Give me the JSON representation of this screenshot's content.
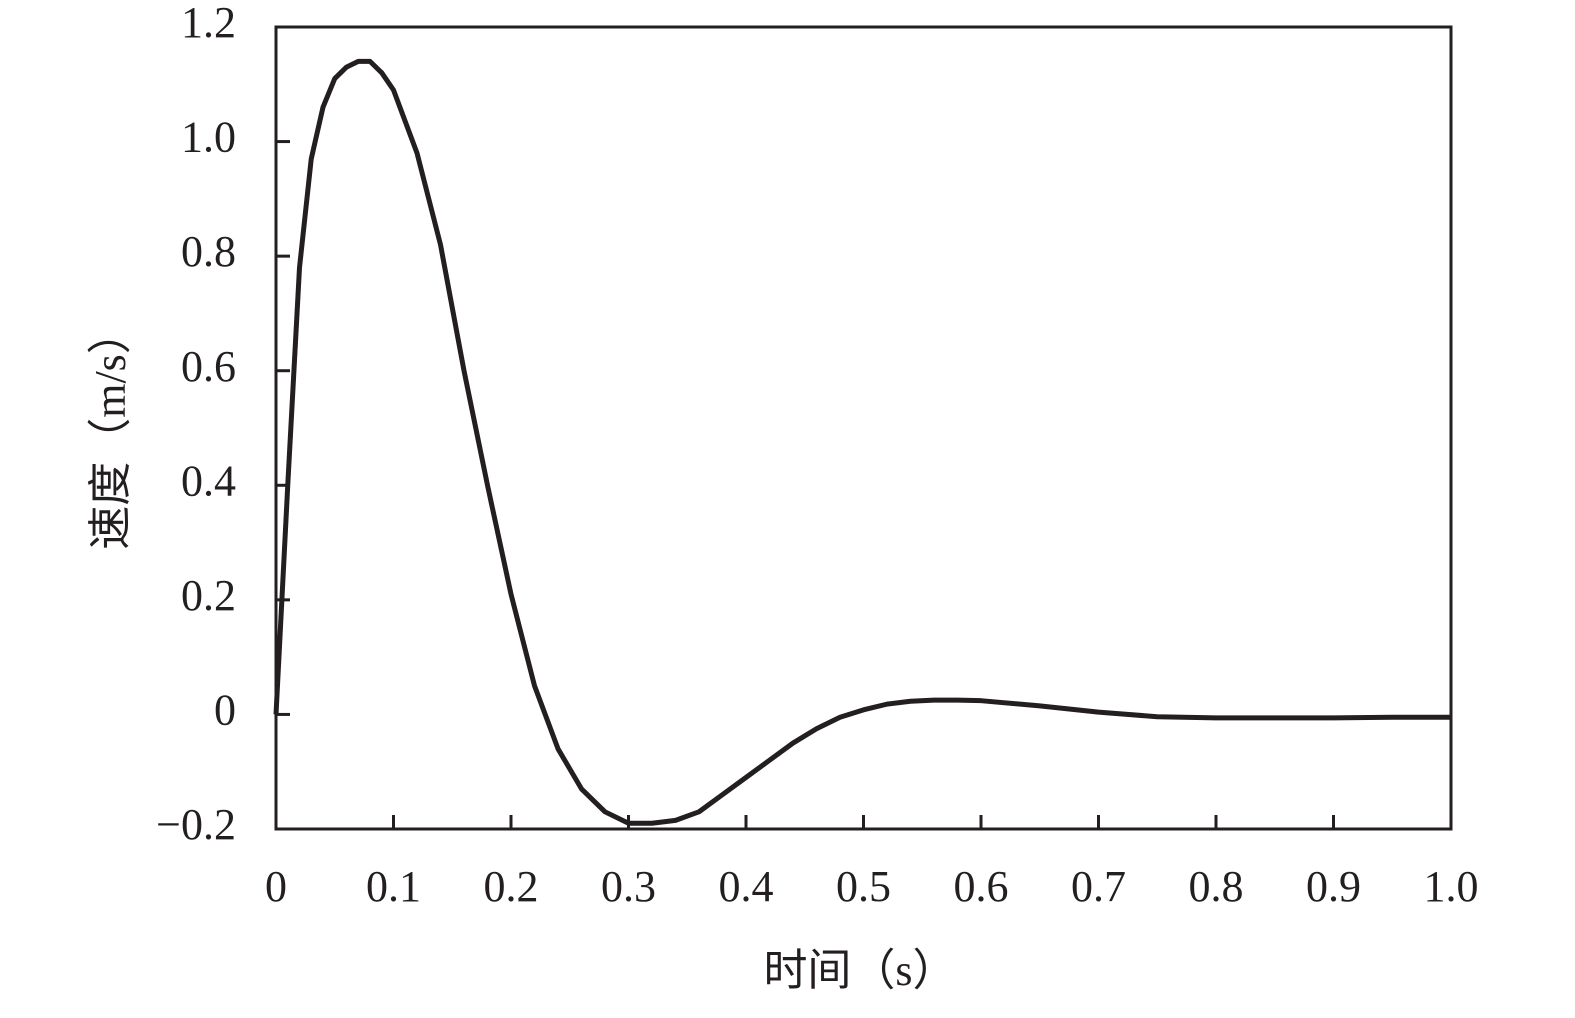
{
  "chart_data": {
    "type": "line",
    "xlabel": "时间（s）",
    "ylabel": "速度（m/s）",
    "x": [
      0,
      0.005,
      0.01,
      0.02,
      0.03,
      0.04,
      0.05,
      0.06,
      0.07,
      0.08,
      0.09,
      0.1,
      0.12,
      0.14,
      0.16,
      0.18,
      0.2,
      0.22,
      0.24,
      0.26,
      0.28,
      0.3,
      0.32,
      0.34,
      0.36,
      0.38,
      0.4,
      0.42,
      0.44,
      0.46,
      0.48,
      0.5,
      0.52,
      0.54,
      0.56,
      0.58,
      0.6,
      0.65,
      0.7,
      0.75,
      0.8,
      0.85,
      0.9,
      0.95,
      1.0
    ],
    "values": [
      0,
      0.2,
      0.4,
      0.78,
      0.97,
      1.06,
      1.11,
      1.13,
      1.14,
      1.14,
      1.12,
      1.09,
      0.98,
      0.82,
      0.6,
      0.4,
      0.21,
      0.05,
      -0.06,
      -0.13,
      -0.17,
      -0.19,
      -0.19,
      -0.185,
      -0.17,
      -0.14,
      -0.11,
      -0.08,
      -0.05,
      -0.025,
      -0.005,
      0.008,
      0.018,
      0.023,
      0.025,
      0.025,
      0.024,
      0.015,
      0.004,
      -0.004,
      -0.006,
      -0.006,
      -0.006,
      -0.005,
      -0.005
    ],
    "color": "#231f20",
    "xlim": [
      0,
      1
    ],
    "xticks": [
      0,
      0.1,
      0.2,
      0.3,
      0.4,
      0.5,
      0.6,
      0.7,
      0.8,
      0.9,
      {
        "value": 1,
        "label": "1.0"
      }
    ],
    "ylim": [
      -0.2,
      1.2
    ],
    "yticks": [
      {
        "value": -0.2,
        "label": "−0.2"
      },
      0,
      0.2,
      0.4,
      0.6,
      0.8,
      {
        "value": 1,
        "label": "1.0"
      },
      1.2
    ],
    "grid": false
  }
}
